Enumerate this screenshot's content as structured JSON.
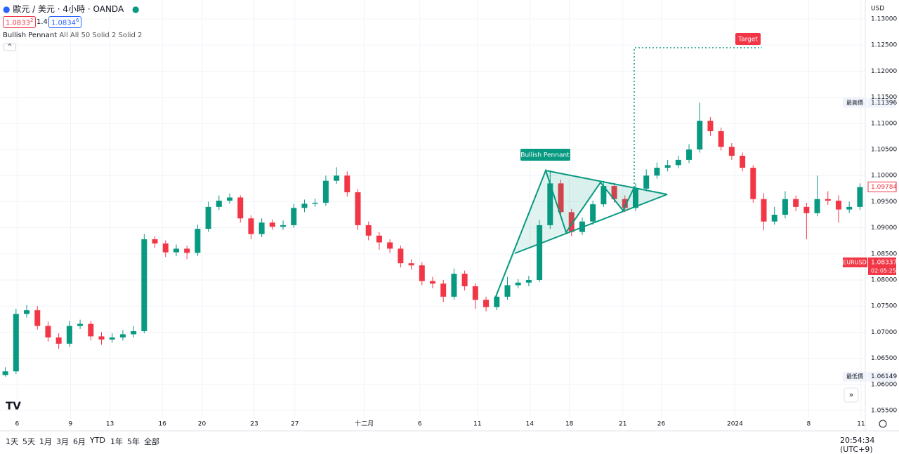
{
  "header": {
    "symbol": "歐元 / 美元 · 4小時 · OANDA",
    "bid": "1.0833",
    "bid_sup": "2",
    "spread": "1.4",
    "ask": "1.0834",
    "ask_sup": "6",
    "indicator": "Bullish Pennant",
    "indicator_params": "All All 50 Solid 2 Solid 2",
    "currency": "USD"
  },
  "toolbar": {
    "ranges": [
      "1天",
      "5天",
      "1月",
      "3月",
      "6月",
      "YTD",
      "1年",
      "5年",
      "全部"
    ],
    "clock": "20:54:34 (UTC+9)"
  },
  "chart_data": {
    "type": "candlestick",
    "up_color": "#089981",
    "down_color": "#f23645",
    "grid": true,
    "annotations": {
      "pattern": "Bullish Pennant",
      "target": "Target"
    },
    "xlim": [
      -0.5,
      80.5
    ],
    "xticks": [
      {
        "value": 1.1,
        "label": "6"
      },
      {
        "value": 6.1,
        "label": "9"
      },
      {
        "value": 9.8,
        "label": "13"
      },
      {
        "value": 14.7,
        "label": "16"
      },
      {
        "value": 18.4,
        "label": "20"
      },
      {
        "value": 23.3,
        "label": "23"
      },
      {
        "value": 27.1,
        "label": "27"
      },
      {
        "value": 33.6,
        "label": "十二月"
      },
      {
        "value": 38.8,
        "label": "6"
      },
      {
        "value": 44.2,
        "label": "11"
      },
      {
        "value": 49.1,
        "label": "14"
      },
      {
        "value": 52.8,
        "label": "18"
      },
      {
        "value": 57.8,
        "label": "21"
      },
      {
        "value": 61.4,
        "label": "26"
      },
      {
        "value": 68.3,
        "label": "2024"
      },
      {
        "value": 75.2,
        "label": "8"
      },
      {
        "value": 80.1,
        "label": "11"
      }
    ],
    "ylim": [
      1.05366,
      1.13363
    ],
    "yticks": [
      {
        "value": 1.055,
        "label": "1.05500"
      },
      {
        "value": 1.06,
        "label": "1.06000"
      },
      {
        "value": 1.065,
        "label": "1.06500"
      },
      {
        "value": 1.07,
        "label": "1.07000"
      },
      {
        "value": 1.075,
        "label": "1.07500"
      },
      {
        "value": 1.08,
        "label": "1.08000"
      },
      {
        "value": 1.085,
        "label": "1.08500"
      },
      {
        "value": 1.09,
        "label": "1.09000"
      },
      {
        "value": 1.095,
        "label": "1.09500"
      },
      {
        "value": 1.1,
        "label": "1.10000"
      },
      {
        "value": 1.105,
        "label": "1.10500"
      },
      {
        "value": 1.11,
        "label": "1.11000"
      },
      {
        "value": 1.115,
        "label": "1.11500"
      },
      {
        "value": 1.12,
        "label": "1.12000"
      },
      {
        "value": 1.125,
        "label": "1.12500"
      },
      {
        "value": 1.13,
        "label": "1.13000"
      }
    ],
    "price_labels": {
      "high": {
        "label": "最高價",
        "value": 1.11396
      },
      "low": {
        "label": "最低價",
        "value": 1.06149
      },
      "last": {
        "value": 1.09784
      },
      "current": {
        "label": "EURUSD",
        "value": 1.08337,
        "countdown": "02:05:25"
      }
    },
    "open": [
      1.0618,
      1.0625,
      1.0735,
      1.0742,
      1.0712,
      1.069,
      1.0678,
      1.0712,
      1.0716,
      1.0692,
      1.0686,
      1.069,
      1.0696,
      1.0702,
      1.0878,
      1.087,
      1.0853,
      1.086,
      1.0852,
      1.0898,
      1.094,
      1.0952,
      1.0958,
      1.0918,
      1.0888,
      1.091,
      1.0902,
      1.0905,
      1.0938,
      1.0946,
      1.0948,
      1.099,
      1.1,
      1.0968,
      1.0905,
      1.0885,
      1.0872,
      1.086,
      1.0832,
      1.0828,
      1.0798,
      1.0793,
      1.0768,
      1.0812,
      1.0788,
      1.0762,
      1.0748,
      1.0768,
      1.079,
      1.0795,
      1.08,
      1.0905,
      1.0985,
      1.093,
      1.0892,
      1.0912,
      1.0945,
      1.098,
      1.0955,
      1.0938,
      1.0975,
      1.1,
      1.1015,
      1.102,
      1.103,
      1.105,
      1.1105,
      1.1085,
      1.1055,
      1.1038,
      1.1015,
      1.0955,
      1.0912,
      1.0925,
      1.0955,
      1.094,
      1.0928,
      1.0955,
      1.0952,
      1.0935,
      1.094
    ],
    "high": [
      1.0633,
      1.0745,
      1.0752,
      1.075,
      1.072,
      1.0698,
      1.0722,
      1.0724,
      1.0722,
      1.07,
      1.0698,
      1.0704,
      1.0712,
      1.0888,
      1.0884,
      1.0876,
      1.0868,
      1.0866,
      1.0906,
      1.095,
      1.0962,
      1.0966,
      1.0962,
      1.0924,
      1.0918,
      1.0916,
      1.0914,
      1.0946,
      1.0954,
      1.0956,
      1.1,
      1.1016,
      1.1008,
      1.0974,
      1.0912,
      1.0892,
      1.0878,
      1.0866,
      1.084,
      1.0834,
      1.0806,
      1.08,
      1.0822,
      1.0818,
      1.0794,
      1.0768,
      1.0776,
      1.0806,
      1.0802,
      1.0808,
      1.0915,
      1.101,
      1.0992,
      1.0936,
      1.092,
      1.0952,
      1.099,
      1.0986,
      1.0962,
      1.0985,
      1.1012,
      1.1025,
      1.103,
      1.1038,
      1.106,
      1.11396,
      1.1112,
      1.1092,
      1.1062,
      1.1044,
      1.102,
      1.0966,
      1.094,
      1.097,
      1.0962,
      1.0948,
      1.1,
      1.097,
      1.0962,
      1.095,
      1.0985
    ],
    "low": [
      1.06149,
      1.062,
      1.0728,
      1.0705,
      1.0682,
      1.0668,
      1.0672,
      1.0706,
      1.0684,
      1.0676,
      1.068,
      1.0684,
      1.069,
      1.0698,
      1.0862,
      1.0844,
      1.0846,
      1.084,
      1.0846,
      1.0892,
      1.0934,
      1.0946,
      1.091,
      1.0878,
      1.0882,
      1.0896,
      1.0896,
      1.09,
      1.093,
      1.094,
      1.0942,
      1.0984,
      1.096,
      1.0896,
      1.0876,
      1.0858,
      1.0852,
      1.0824,
      1.082,
      1.079,
      1.0784,
      1.0758,
      1.0762,
      1.078,
      1.0745,
      1.074,
      1.0742,
      1.0762,
      1.0784,
      1.0788,
      1.0796,
      1.0898,
      1.0922,
      1.0884,
      1.0886,
      1.0906,
      1.094,
      1.0948,
      1.093,
      1.0932,
      1.097,
      1.0994,
      1.1008,
      1.1014,
      1.1024,
      1.1044,
      1.1076,
      1.1048,
      1.103,
      1.1008,
      1.0948,
      1.0895,
      1.0906,
      1.0918,
      1.0932,
      1.0878,
      1.0922,
      1.0944,
      1.091,
      1.0928,
      1.0934
    ],
    "close": [
      1.0625,
      1.0735,
      1.0742,
      1.0712,
      1.069,
      1.0678,
      1.0712,
      1.0716,
      1.0692,
      1.0686,
      1.069,
      1.0696,
      1.0702,
      1.0878,
      1.087,
      1.0853,
      1.086,
      1.0852,
      1.0898,
      1.094,
      1.0952,
      1.0958,
      1.0918,
      1.0888,
      1.091,
      1.0902,
      1.0905,
      1.0938,
      1.0946,
      1.0948,
      1.099,
      1.1,
      1.0968,
      1.0905,
      1.0885,
      1.0872,
      1.086,
      1.0832,
      1.0828,
      1.0798,
      1.0793,
      1.0768,
      1.0812,
      1.0788,
      1.0762,
      1.0748,
      1.0768,
      1.079,
      1.0795,
      1.08,
      1.0905,
      1.0985,
      1.093,
      1.0892,
      1.0912,
      1.0945,
      1.098,
      1.0955,
      1.0938,
      1.0975,
      1.1,
      1.1015,
      1.102,
      1.103,
      1.105,
      1.1105,
      1.1085,
      1.1055,
      1.1038,
      1.1015,
      1.0955,
      1.0912,
      1.0925,
      1.0955,
      1.094,
      1.0928,
      1.0955,
      1.0952,
      1.0935,
      1.094,
      1.0978
    ]
  }
}
